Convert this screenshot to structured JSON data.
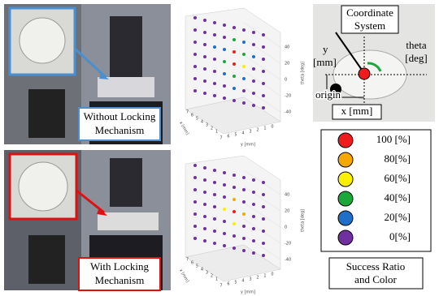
{
  "photos": [
    {
      "label": [
        "Without Locking",
        "Mechanism"
      ],
      "frame": "#4a8fd0"
    },
    {
      "label": [
        "With Locking",
        "Mechanism"
      ],
      "frame": "#e01010"
    }
  ],
  "plots": [
    {
      "x_label": "x [mm]",
      "y_label": "y [mm]",
      "z_label": "theta [deg]",
      "zticks": [
        40,
        20,
        0,
        -20,
        -40
      ],
      "xticks": [
        7,
        6,
        5,
        4,
        3,
        2,
        1
      ],
      "yticks": [
        7,
        6,
        5,
        4,
        3,
        2,
        1,
        0
      ],
      "columns": [
        [
          0,
          0,
          0,
          0,
          0,
          0,
          0
        ],
        [
          0,
          0,
          0,
          0,
          0,
          0,
          0
        ],
        [
          0,
          0,
          20,
          0,
          0,
          0,
          0
        ],
        [
          0,
          0,
          20,
          40,
          20,
          0,
          0
        ],
        [
          0,
          40,
          100,
          100,
          40,
          20,
          0
        ],
        [
          0,
          20,
          40,
          60,
          20,
          0,
          0
        ],
        [
          0,
          0,
          20,
          0,
          0,
          0,
          0
        ],
        [
          0,
          0,
          0,
          0,
          0,
          0,
          0
        ]
      ]
    },
    {
      "x_label": "x [mm]",
      "y_label": "y [mm]",
      "z_label": "theta [deg]",
      "zticks": [
        40,
        20,
        0,
        -20,
        -40
      ],
      "xticks": [
        7,
        6,
        5,
        4,
        3,
        2,
        1
      ],
      "yticks": [
        7,
        6,
        5,
        4,
        3,
        2,
        1,
        0
      ],
      "columns": [
        [
          0,
          0,
          0,
          0,
          0,
          0,
          0
        ],
        [
          0,
          0,
          0,
          0,
          0,
          0,
          0
        ],
        [
          0,
          0,
          0,
          0,
          0,
          0,
          0
        ],
        [
          0,
          0,
          0,
          60,
          0,
          0,
          0
        ],
        [
          0,
          0,
          80,
          100,
          60,
          0,
          0
        ],
        [
          0,
          0,
          0,
          80,
          0,
          0,
          0
        ],
        [
          0,
          0,
          0,
          0,
          0,
          0,
          0
        ],
        [
          0,
          0,
          0,
          0,
          0,
          0,
          0
        ]
      ]
    }
  ],
  "coordinate": {
    "title": [
      "Coordinate",
      "System"
    ],
    "theta": [
      "theta",
      "[deg]"
    ],
    "y": [
      "y",
      "[mm]"
    ],
    "x": "x [mm]",
    "origin": "origin"
  },
  "legend": {
    "levels": [
      {
        "label": "100 [%]",
        "value": 100,
        "color": "#ee1c1c"
      },
      {
        "label": "80[%]",
        "value": 80,
        "color": "#f5a800"
      },
      {
        "label": "60[%]",
        "value": 60,
        "color": "#f8f000"
      },
      {
        "label": "40[%]",
        "value": 40,
        "color": "#1aa83a"
      },
      {
        "label": "20[%]",
        "value": 20,
        "color": "#1f6fc9"
      },
      {
        "label": "0[%]",
        "value": 0,
        "color": "#7030a0"
      }
    ],
    "caption": [
      "Success Ratio",
      "and Color"
    ]
  }
}
